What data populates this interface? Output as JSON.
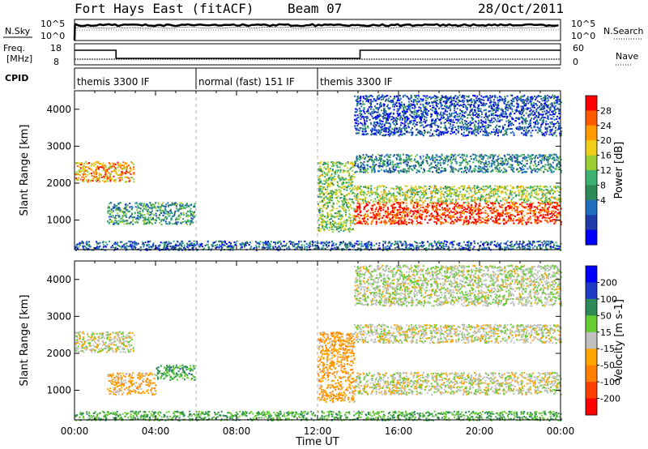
{
  "header": {
    "station": "Fort Hays East (fitACF)",
    "beam": "Beam 07",
    "date": "28/Oct/2011"
  },
  "noise_panel": {
    "left_label": "N.Sky",
    "right_label": "N.Search",
    "left_ticks": [
      "10^5",
      "10^0"
    ],
    "right_ticks": [
      "10^5",
      "10^0"
    ]
  },
  "freq_panel": {
    "left_label_1": "Freq.",
    "left_label_2": "[MHz]",
    "right_label": "Nave",
    "left_ticks": [
      "18",
      "8"
    ],
    "right_ticks": [
      "60",
      "0"
    ]
  },
  "cpid": {
    "label": "CPID",
    "segments": [
      {
        "name": "themis 3300 IF",
        "start_hour": 0,
        "end_hour": 6
      },
      {
        "name": "normal (fast) 151 IF",
        "start_hour": 6,
        "end_hour": 12
      },
      {
        "name": "themis 3300 IF",
        "start_hour": 12,
        "end_hour": 24
      }
    ]
  },
  "xaxis": {
    "title": "Time UT",
    "ticks": [
      "00:00",
      "04:00",
      "08:00",
      "12:00",
      "16:00",
      "20:00",
      "00:00"
    ]
  },
  "chart_data": [
    {
      "type": "heatmap",
      "ylabel": "Slant Range [km]",
      "yticks": [
        "4000",
        "3000",
        "2000",
        "1000"
      ],
      "ylim": [
        200,
        4500
      ],
      "xlim": [
        0,
        24
      ],
      "colorbar": {
        "label": "Power [dB]",
        "ticks": [
          "28",
          "24",
          "20",
          "16",
          "12",
          "8",
          "4"
        ],
        "colors": [
          "#ff0000",
          "#ff5a00",
          "#ff9b00",
          "#f0cf1a",
          "#9acd32",
          "#3cb371",
          "#2e8b57",
          "#1e6fbf",
          "#1f3ba8",
          "#0000ff"
        ]
      },
      "regions": [
        {
          "t0": 0,
          "t1": 2.9,
          "r0": 2050,
          "r1": 2600,
          "level": 0.75
        },
        {
          "t0": 1.6,
          "t1": 5.9,
          "r0": 900,
          "r1": 1500,
          "level": 0.35
        },
        {
          "t0": 12.0,
          "t1": 13.8,
          "r0": 700,
          "r1": 2600,
          "level": 0.5
        },
        {
          "t0": 13.8,
          "t1": 24,
          "r0": 900,
          "r1": 1500,
          "level": 0.95
        },
        {
          "t0": 13.8,
          "t1": 24,
          "r0": 1500,
          "r1": 1950,
          "level": 0.55
        },
        {
          "t0": 13.8,
          "t1": 24,
          "r0": 2300,
          "r1": 2800,
          "level": 0.3
        },
        {
          "t0": 13.8,
          "t1": 24,
          "r0": 3300,
          "r1": 4400,
          "level": 0.15
        },
        {
          "t0": 0,
          "t1": 24,
          "r0": 200,
          "r1": 450,
          "level": 0.2
        }
      ]
    },
    {
      "type": "heatmap",
      "ylabel": "Slant Range [km]",
      "yticks": [
        "4000",
        "3000",
        "2000",
        "1000"
      ],
      "ylim": [
        200,
        4500
      ],
      "xlim": [
        0,
        24
      ],
      "colorbar": {
        "label": "Velocity [m s-1]",
        "ticks": [
          "200",
          "100",
          "50",
          "15",
          "-15",
          "-50",
          "-100",
          "-200"
        ],
        "colors": [
          "#0000ff",
          "#1e3cc8",
          "#2e8b57",
          "#66cc33",
          "#c0c0c0",
          "#ffa500",
          "#ff7f00",
          "#ff4000",
          "#ff0000"
        ]
      },
      "regions": [
        {
          "t0": 0,
          "t1": 2.9,
          "r0": 2050,
          "r1": 2600,
          "level": 0.0
        },
        {
          "t0": 1.6,
          "t1": 4.0,
          "r0": 900,
          "r1": 1500,
          "level": -0.25
        },
        {
          "t0": 4.0,
          "t1": 5.9,
          "r0": 1300,
          "r1": 1700,
          "level": 0.4
        },
        {
          "t0": 12.0,
          "t1": 13.8,
          "r0": 700,
          "r1": 2600,
          "level": -0.3
        },
        {
          "t0": 13.8,
          "t1": 24,
          "r0": 900,
          "r1": 1500,
          "level": 0.0
        },
        {
          "t0": 13.8,
          "t1": 24,
          "r0": 2300,
          "r1": 2800,
          "level": 0.0
        },
        {
          "t0": 13.8,
          "t1": 24,
          "r0": 3300,
          "r1": 4400,
          "level": 0.05
        },
        {
          "t0": 0,
          "t1": 24,
          "r0": 200,
          "r1": 450,
          "level": 0.35
        }
      ]
    }
  ]
}
